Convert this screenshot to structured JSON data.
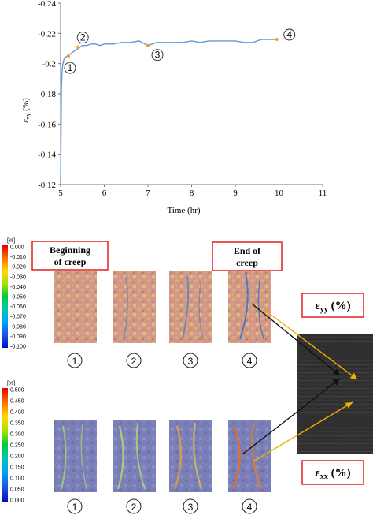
{
  "chart_data": {
    "type": "line",
    "xlabel": "Time (hr)",
    "ylabel": "ε_yy (%)",
    "xlim": [
      5,
      11
    ],
    "ylim": [
      -0.12,
      -0.24
    ],
    "xticks": [
      "5",
      "6",
      "7",
      "8",
      "9",
      "10",
      "11"
    ],
    "yticks": [
      "-0.12",
      "-0.14",
      "-0.16",
      "-0.18",
      "-0.2",
      "-0.22",
      "-0.24"
    ],
    "grid": false,
    "series": [
      {
        "color": "#5b9bd5",
        "x": [
          5.0,
          5.02,
          5.04,
          5.06,
          5.08,
          5.1,
          5.15,
          5.2,
          5.25,
          5.3,
          5.35,
          5.4,
          5.45,
          5.5,
          5.6,
          5.7,
          5.8,
          5.9,
          6.0,
          6.2,
          6.4,
          6.6,
          6.8,
          7.0,
          7.2,
          7.4,
          7.6,
          7.8,
          8.0,
          8.2,
          8.4,
          8.6,
          8.8,
          9.0,
          9.2,
          9.4,
          9.6,
          9.8,
          9.95
        ],
        "y": [
          -0.12,
          -0.185,
          -0.197,
          -0.201,
          -0.203,
          -0.204,
          -0.205,
          -0.206,
          -0.207,
          -0.208,
          -0.209,
          -0.21,
          -0.211,
          -0.212,
          -0.212,
          -0.213,
          -0.213,
          -0.212,
          -0.213,
          -0.213,
          -0.214,
          -0.214,
          -0.215,
          -0.212,
          -0.214,
          -0.214,
          -0.214,
          -0.214,
          -0.215,
          -0.214,
          -0.215,
          -0.215,
          -0.215,
          -0.215,
          -0.214,
          -0.214,
          -0.216,
          -0.216,
          -0.216
        ]
      }
    ],
    "markers": [
      {
        "label": "1",
        "x": 5.18,
        "y": -0.205
      },
      {
        "label": "2",
        "x": 5.4,
        "y": -0.211
      },
      {
        "label": "3",
        "x": 7.0,
        "y": -0.212
      },
      {
        "label": "4",
        "x": 9.95,
        "y": -0.216
      }
    ]
  },
  "legends": {
    "yy": {
      "unit": "[%]",
      "ticks": [
        "0.000",
        "-0.010",
        "-0.020",
        "-0.030",
        "-0.040",
        "-0.050",
        "-0.060",
        "-0.070",
        "-0.080",
        "-0.090",
        "-0.100"
      ]
    },
    "xx": {
      "unit": "[%]",
      "ticks": [
        "0.500",
        "0.450",
        "0.400",
        "0.350",
        "0.300",
        "0.250",
        "0.200",
        "0.150",
        "0.100",
        "0.050",
        "0.000"
      ]
    }
  },
  "labels": {
    "beginning": [
      "Beginning",
      "of creep"
    ],
    "end": [
      "End of",
      "creep"
    ],
    "eps_yy": {
      "main": "ε",
      "sub": "yy",
      "unit": " (%)"
    },
    "eps_xx": {
      "main": "ε",
      "sub": "xx",
      "unit": " (%)"
    }
  },
  "stage_numbers": [
    "1",
    "2",
    "3",
    "4"
  ]
}
